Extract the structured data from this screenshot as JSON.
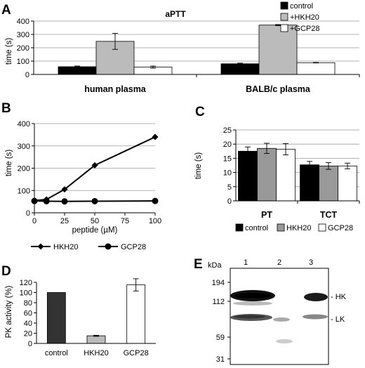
{
  "panels": [
    {
      "panel_label": "A",
      "title": "aPTT",
      "type": "bar",
      "categories": [
        "human plasma",
        "BALB/c plasma"
      ],
      "series": [
        {
          "name": "control",
          "color": "#000000",
          "values": [
            58,
            80
          ],
          "errors": [
            5,
            5
          ]
        },
        {
          "name": "+HKH20",
          "color": "#bbbbbb",
          "values": [
            248,
            370
          ],
          "errors": [
            60,
            4
          ]
        },
        {
          "name": "+GCP28",
          "color": "#ffffff",
          "values": [
            55,
            88
          ],
          "errors": [
            8,
            2
          ]
        }
      ],
      "ylabel": "time (s)",
      "ylim": [
        0,
        400
      ],
      "yticks": [
        0,
        100,
        200,
        300,
        400
      ],
      "grid": true,
      "legend": "top-right"
    },
    {
      "panel_label": "B",
      "type": "line",
      "x": [
        0,
        10,
        25,
        50,
        100
      ],
      "series": [
        {
          "name": "HKH20",
          "marker": "diamond",
          "values": [
            55,
            60,
            105,
            213,
            340
          ]
        },
        {
          "name": "GCP28",
          "marker": "circle",
          "values": [
            53,
            52,
            51,
            52,
            53
          ]
        }
      ],
      "xlabel": "peptide (µM)",
      "ylabel": "time (s)",
      "xlim": [
        0,
        100
      ],
      "ylim": [
        0,
        400
      ],
      "xticks": [
        0,
        25,
        50,
        75,
        100
      ],
      "yticks": [
        0,
        100,
        200,
        300,
        400
      ],
      "grid": true,
      "legend": "bottom"
    },
    {
      "panel_label": "C",
      "type": "bar",
      "categories": [
        "PT",
        "TCT"
      ],
      "series": [
        {
          "name": "control",
          "color": "#000000",
          "values": [
            17.5,
            12.7
          ],
          "errors": [
            1.5,
            1.2
          ]
        },
        {
          "name": "HKH20",
          "color": "#999999",
          "values": [
            18.5,
            12.3
          ],
          "errors": [
            1.8,
            1.2
          ]
        },
        {
          "name": "GCP28",
          "color": "#ffffff",
          "values": [
            18.2,
            12.3
          ],
          "errors": [
            2.0,
            1.0
          ]
        }
      ],
      "ylabel": "time (s)",
      "ylim": [
        0,
        25
      ],
      "yticks": [
        0,
        5,
        10,
        15,
        20,
        25
      ],
      "grid": true,
      "legend": "bottom"
    },
    {
      "panel_label": "D",
      "type": "bar",
      "categories": [
        "control",
        "HKH20",
        "GCP28"
      ],
      "values": [
        100,
        15,
        115
      ],
      "errors": [
        0,
        1,
        12
      ],
      "colors": [
        "#333333",
        "#bbbbbb",
        "#ffffff"
      ],
      "ylabel": "PK activity (%)",
      "ylim": [
        0,
        120
      ],
      "yticks": [
        0,
        20,
        40,
        60,
        80,
        100,
        120
      ],
      "grid": false
    }
  ],
  "blot": {
    "panel_label": "E",
    "kda_label": "kDa",
    "lanes": [
      "1",
      "2",
      "3"
    ],
    "markers": [
      "194",
      "112",
      "59",
      "31"
    ],
    "band_labels": [
      "- HK",
      "- LK"
    ]
  }
}
